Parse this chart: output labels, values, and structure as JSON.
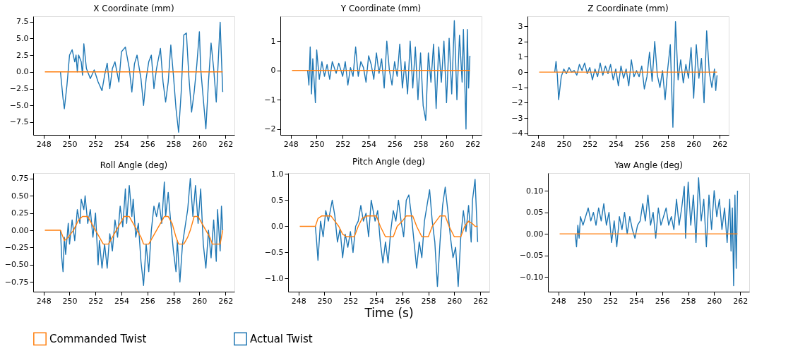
{
  "chart_data": [
    {
      "type": "line",
      "title": "X Coordinate (mm)",
      "xlim": [
        247.2,
        262.7
      ],
      "xticks": [
        248,
        250,
        252,
        254,
        256,
        258,
        260,
        262
      ],
      "ylim": [
        -9.4,
        8.3
      ],
      "yticks": [
        {
          "value": -7.5,
          "label": "−7.5"
        },
        {
          "value": -5,
          "label": "−5.0"
        },
        {
          "value": -2.5,
          "label": "−2.5"
        },
        {
          "value": 0,
          "label": "0.0"
        },
        {
          "value": 2.5,
          "label": "2.5"
        },
        {
          "value": 5,
          "label": "5.0"
        },
        {
          "value": 7.5,
          "label": "7.5"
        }
      ],
      "grid": false,
      "legend": "bottom",
      "series": [
        {
          "name": "Commanded Twist",
          "color": "#ff7f0e",
          "x": [
            248.1,
            261.8
          ],
          "values": [
            0,
            0
          ]
        },
        {
          "name": "Actual Twist",
          "color": "#1f77b4",
          "x": [
            249.3,
            249.5,
            249.6,
            249.8,
            250.0,
            250.2,
            250.4,
            250.5,
            250.6,
            250.7,
            250.9,
            251.0,
            251.1,
            251.3,
            251.6,
            251.9,
            252.2,
            252.5,
            252.7,
            252.9,
            253.1,
            253.3,
            253.5,
            253.8,
            254.0,
            254.3,
            254.6,
            254.8,
            255.0,
            255.2,
            255.5,
            255.7,
            255.9,
            256.1,
            256.3,
            256.5,
            256.7,
            257.0,
            257.2,
            257.4,
            257.6,
            257.8,
            258.0,
            258.2,
            258.4,
            258.6,
            258.8,
            259.0,
            259.2,
            259.4,
            259.6,
            259.8,
            260.0,
            260.1,
            260.3,
            260.5,
            260.7,
            260.9,
            261.1,
            261.3,
            261.5,
            261.6,
            261.7,
            261.8
          ],
          "values": [
            0,
            -4,
            -5.5,
            -2,
            2.5,
            3.3,
            1.5,
            2.5,
            0,
            2.5,
            1.5,
            -0.5,
            4.2,
            0.5,
            -1,
            0.3,
            -1.5,
            -2.8,
            -0.5,
            1.3,
            -2.5,
            0.5,
            1.5,
            -1.5,
            3,
            3.7,
            0.5,
            -3,
            1.2,
            2.5,
            -1,
            -5,
            -1,
            1.5,
            2.5,
            -2.5,
            0.5,
            3.5,
            -1.5,
            -4.5,
            -1.5,
            4,
            -0.5,
            -5.5,
            -9,
            -3,
            5.5,
            5.8,
            -1,
            -6,
            -3,
            1,
            6,
            0.5,
            -4,
            -8.5,
            -1.5,
            4.3,
            0.5,
            -4.5,
            3.5,
            7.4,
            2,
            -3
          ]
        }
      ]
    },
    {
      "type": "line",
      "title": "Y Coordinate (mm)",
      "xlim": [
        247.2,
        262.7
      ],
      "xticks": [
        248,
        250,
        252,
        254,
        256,
        258,
        260,
        262
      ],
      "ylim": [
        -2.2,
        1.85
      ],
      "yticks": [
        {
          "value": -2,
          "label": "−2"
        },
        {
          "value": -1,
          "label": "−1"
        },
        0,
        1
      ],
      "grid": false,
      "series": [
        {
          "color": "#ff7f0e",
          "x": [
            248.1,
            261.8
          ],
          "values": [
            0,
            0
          ]
        },
        {
          "color": "#1f77b4",
          "x": [
            249.3,
            249.4,
            249.5,
            249.6,
            249.7,
            249.9,
            250.0,
            250.2,
            250.4,
            250.6,
            250.8,
            251.0,
            251.2,
            251.5,
            251.7,
            252.0,
            252.2,
            252.4,
            252.6,
            252.8,
            253.0,
            253.2,
            253.4,
            253.6,
            253.8,
            254.0,
            254.2,
            254.4,
            254.6,
            254.8,
            255.0,
            255.2,
            255.4,
            255.6,
            255.8,
            256.0,
            256.2,
            256.4,
            256.6,
            256.8,
            257.0,
            257.2,
            257.4,
            257.6,
            257.8,
            258.0,
            258.2,
            258.4,
            258.6,
            258.8,
            259.0,
            259.2,
            259.4,
            259.6,
            259.8,
            260.0,
            260.2,
            260.4,
            260.6,
            260.8,
            261.0,
            261.2,
            261.3,
            261.5,
            261.6,
            261.7,
            261.8
          ],
          "values": [
            0,
            -0.5,
            0.8,
            -0.8,
            0.4,
            -1.1,
            0.7,
            -0.3,
            0.3,
            -0.2,
            0.2,
            -0.3,
            0.3,
            -0.1,
            0.25,
            -0.2,
            0.3,
            -0.5,
            0.1,
            -0.2,
            0.8,
            -0.2,
            0.3,
            0.1,
            -0.4,
            0.5,
            0.2,
            -0.3,
            0.6,
            -0.1,
            0.4,
            -0.6,
            1.0,
            0,
            -0.5,
            0.3,
            -0.2,
            0.9,
            -0.6,
            0.3,
            -0.8,
            1.0,
            -0.6,
            0.8,
            -1.0,
            0.6,
            -1.2,
            -1.7,
            0.6,
            -0.4,
            0.9,
            -1.3,
            0.8,
            -0.4,
            1.0,
            -1.1,
            1.1,
            -0.8,
            1.7,
            -1.0,
            1.2,
            -0.4,
            1.4,
            -2.0,
            1.4,
            -0.6,
            0.5
          ]
        }
      ]
    },
    {
      "type": "line",
      "title": "Z Coordinate (mm)",
      "xlim": [
        247.2,
        262.7
      ],
      "xticks": [
        248,
        250,
        252,
        254,
        256,
        258,
        260,
        262
      ],
      "ylim": [
        -4.1,
        3.65
      ],
      "yticks": [
        {
          "value": -4,
          "label": "−4"
        },
        {
          "value": -3,
          "label": "−3"
        },
        {
          "value": -2,
          "label": "−2"
        },
        {
          "value": -1,
          "label": "−1"
        },
        0,
        1,
        2,
        3
      ],
      "grid": false,
      "series": [
        {
          "color": "#ff7f0e",
          "x": [
            248.1,
            261.8
          ],
          "values": [
            0,
            0
          ]
        },
        {
          "color": "#1f77b4",
          "x": [
            249.3,
            249.4,
            249.5,
            249.6,
            249.8,
            250.0,
            250.2,
            250.4,
            250.6,
            250.8,
            251.0,
            251.2,
            251.4,
            251.6,
            251.8,
            252.0,
            252.2,
            252.4,
            252.6,
            252.8,
            253.0,
            253.2,
            253.4,
            253.6,
            253.8,
            254.0,
            254.2,
            254.4,
            254.6,
            254.8,
            255.0,
            255.2,
            255.4,
            255.6,
            255.8,
            256.0,
            256.2,
            256.4,
            256.6,
            256.8,
            257.0,
            257.2,
            257.4,
            257.6,
            257.8,
            258.0,
            258.2,
            258.4,
            258.6,
            258.8,
            259.0,
            259.2,
            259.4,
            259.6,
            259.8,
            260.0,
            260.2,
            260.4,
            260.6,
            260.8,
            261.0,
            261.2,
            261.4,
            261.6,
            261.7,
            261.8
          ],
          "values": [
            0,
            0.7,
            -0.2,
            -1.8,
            -0.3,
            0.2,
            -0.1,
            0.3,
            0,
            0.1,
            -0.2,
            0.5,
            0.1,
            0.6,
            -0.1,
            0.3,
            -0.5,
            0.2,
            -0.3,
            0.6,
            -0.2,
            0.4,
            -0.1,
            0.5,
            -0.5,
            0.2,
            -0.9,
            0.4,
            -0.4,
            0.2,
            -0.9,
            0.8,
            -0.3,
            0.1,
            -0.3,
            0.4,
            -1.1,
            -0.3,
            1.3,
            -0.6,
            2.0,
            -0.2,
            -1.0,
            0.1,
            -1.8,
            0.2,
            1.8,
            -3.6,
            3.3,
            -0.5,
            0.8,
            -0.7,
            0.5,
            -0.4,
            1.6,
            -1.7,
            1.8,
            -0.4,
            0.9,
            -2.0,
            2.7,
            0,
            -1.0,
            0.2,
            -1.2,
            -0.2
          ]
        }
      ]
    },
    {
      "type": "line",
      "title": "Roll Angle (deg)",
      "xlim": [
        247.2,
        262.7
      ],
      "xticks": [
        248,
        250,
        252,
        254,
        256,
        258,
        260,
        262
      ],
      "ylim": [
        -0.89,
        0.83
      ],
      "yticks": [
        {
          "value": -0.75,
          "label": "−0.75"
        },
        {
          "value": -0.5,
          "label": "−0.50"
        },
        {
          "value": -0.25,
          "label": "−0.25"
        },
        {
          "value": 0,
          "label": "0.00"
        },
        {
          "value": 0.25,
          "label": "0.25"
        },
        {
          "value": 0.5,
          "label": "0.50"
        },
        {
          "value": 0.75,
          "label": "0.75"
        }
      ],
      "grid": false,
      "series": [
        {
          "color": "#ff7f0e",
          "x": [
            248.1,
            249.3,
            249.6,
            249.9,
            250.3,
            250.7,
            251.0,
            251.4,
            251.7,
            252.0,
            252.3,
            252.6,
            253.0,
            253.3,
            253.6,
            253.9,
            254.2,
            254.6,
            254.9,
            255.2,
            255.5,
            255.7,
            256.1,
            256.4,
            256.7,
            257.0,
            257.3,
            257.6,
            257.9,
            258.2,
            258.4,
            258.8,
            259.1,
            259.3,
            259.6,
            259.9,
            260.2,
            260.5,
            260.8,
            261.0,
            261.6,
            261.8
          ],
          "values": [
            0,
            0,
            -0.15,
            -0.1,
            0,
            0.15,
            0.2,
            0.2,
            0.1,
            0,
            -0.1,
            -0.2,
            -0.2,
            -0.1,
            0,
            0.1,
            0.2,
            0.2,
            0.1,
            0,
            -0.1,
            -0.2,
            -0.2,
            -0.1,
            0,
            0.1,
            0.2,
            0.2,
            0.1,
            -0.1,
            -0.2,
            -0.2,
            -0.1,
            0,
            0.2,
            0.2,
            0.1,
            0,
            -0.1,
            -0.2,
            -0.2,
            0
          ]
        },
        {
          "color": "#1f77b4",
          "x": [
            249.3,
            249.4,
            249.5,
            249.6,
            249.7,
            249.9,
            250.0,
            250.2,
            250.4,
            250.6,
            250.8,
            250.9,
            251.1,
            251.2,
            251.4,
            251.6,
            251.8,
            252.0,
            252.2,
            252.3,
            252.5,
            252.7,
            252.9,
            253.1,
            253.3,
            253.5,
            253.7,
            253.9,
            254.1,
            254.3,
            254.4,
            254.6,
            254.8,
            254.9,
            255.1,
            255.3,
            255.5,
            255.7,
            255.9,
            256.1,
            256.3,
            256.5,
            256.7,
            256.9,
            257.1,
            257.3,
            257.4,
            257.6,
            257.8,
            258.0,
            258.2,
            258.3,
            258.5,
            258.7,
            258.9,
            259.1,
            259.3,
            259.5,
            259.7,
            259.9,
            260.1,
            260.3,
            260.5,
            260.7,
            260.9,
            261.1,
            261.3,
            261.4,
            261.6,
            261.7,
            261.8
          ],
          "values": [
            0,
            -0.4,
            -0.6,
            -0.1,
            -0.35,
            0.1,
            -0.2,
            0.15,
            -0.15,
            0.3,
            0.1,
            0.45,
            0.3,
            0.5,
            0.1,
            0.3,
            -0.1,
            0.25,
            -0.5,
            -0.15,
            -0.55,
            -0.2,
            -0.55,
            -0.05,
            -0.3,
            0.15,
            -0.1,
            0.35,
            0.05,
            0.6,
            0.1,
            0.65,
            0.2,
            0.45,
            -0.1,
            0.1,
            -0.45,
            -0.8,
            -0.2,
            -0.6,
            0,
            0.35,
            0.2,
            0.4,
            0.1,
            0.7,
            0.2,
            0.55,
            0.1,
            -0.3,
            -0.6,
            -0.15,
            -0.75,
            -0.2,
            0.05,
            0.3,
            0.75,
            0.2,
            0.65,
            0.1,
            0.6,
            -0.2,
            -0.55,
            0,
            -0.4,
            0.15,
            -0.45,
            0.3,
            -0.3,
            0.35,
            0
          ]
        }
      ]
    },
    {
      "type": "line",
      "title": "Pitch Angle (deg)",
      "xlabel": "Time (s)",
      "xlim": [
        247.2,
        262.7
      ],
      "xticks": [
        248,
        250,
        252,
        254,
        256,
        258,
        260,
        262
      ],
      "ylim": [
        -1.25,
        1.02
      ],
      "yticks": [
        {
          "value": -1,
          "label": "−1.0"
        },
        {
          "value": -0.5,
          "label": "−0.5"
        },
        {
          "value": 0,
          "label": "0.0"
        },
        {
          "value": 0.5,
          "label": "0.5"
        },
        {
          "value": 1,
          "label": "1.0"
        }
      ],
      "grid": false,
      "series": [
        {
          "color": "#ff7f0e",
          "x": [
            248.1,
            249.3,
            249.5,
            249.8,
            250.5,
            250.8,
            251.1,
            251.4,
            251.7,
            252.3,
            252.6,
            252.9,
            253.3,
            254.0,
            254.3,
            254.7,
            255.3,
            255.6,
            256.0,
            256.3,
            256.8,
            257.1,
            257.5,
            258.0,
            258.3,
            258.6,
            258.9,
            259.3,
            259.6,
            260.0,
            260.5,
            260.8,
            261.1,
            261.4,
            261.6,
            261.8
          ],
          "values": [
            0,
            0,
            0.15,
            0.2,
            0.2,
            0.1,
            0,
            -0.15,
            -0.2,
            -0.2,
            0,
            0.15,
            0.2,
            0.2,
            0,
            -0.2,
            -0.2,
            0,
            0.1,
            0.2,
            0.2,
            0,
            -0.2,
            -0.2,
            0,
            0.1,
            0.2,
            0.2,
            0,
            -0.2,
            -0.2,
            0,
            0.1,
            0.05,
            0,
            0
          ]
        },
        {
          "color": "#1f77b4",
          "x": [
            249.3,
            249.4,
            249.5,
            249.7,
            249.9,
            250.1,
            250.3,
            250.6,
            250.8,
            251.0,
            251.2,
            251.4,
            251.6,
            251.8,
            252.0,
            252.2,
            252.4,
            252.6,
            252.8,
            253.0,
            253.2,
            253.4,
            253.6,
            253.9,
            254.1,
            254.3,
            254.5,
            254.7,
            254.9,
            255.1,
            255.3,
            255.5,
            255.7,
            255.9,
            256.1,
            256.3,
            256.5,
            256.7,
            256.9,
            257.1,
            257.3,
            257.5,
            257.7,
            257.9,
            258.1,
            258.3,
            258.5,
            258.7,
            258.9,
            259.1,
            259.3,
            259.5,
            259.7,
            259.9,
            260.1,
            260.3,
            260.5,
            260.7,
            260.9,
            261.1,
            261.3,
            261.4,
            261.6,
            261.7,
            261.8
          ],
          "values": [
            0,
            -0.3,
            -0.65,
            0.1,
            -0.2,
            0.3,
            0.1,
            0.5,
            0.2,
            -0.3,
            -0.05,
            -0.6,
            -0.15,
            -0.4,
            -0.1,
            -0.5,
            0,
            0.1,
            0.4,
            0.1,
            0.25,
            -0.2,
            0.5,
            0.1,
            0.3,
            -0.3,
            -0.7,
            -0.3,
            -0.7,
            -0.1,
            0.3,
            0.1,
            0.5,
            0.1,
            -0.2,
            0.5,
            0.6,
            0.2,
            -0.3,
            -0.8,
            -0.3,
            -0.6,
            0.1,
            0.4,
            0.7,
            0.1,
            -0.3,
            -1.15,
            -0.3,
            0.4,
            0.75,
            0.3,
            -0.2,
            -0.6,
            -0.4,
            -1.15,
            -0.2,
            0.3,
            -0.1,
            0.4,
            -0.3,
            0.5,
            0.9,
            0.3,
            -0.3
          ]
        }
      ]
    },
    {
      "type": "line",
      "title": "Yaw Angle (deg)",
      "xlim": [
        247.2,
        262.7
      ],
      "xticks": [
        248,
        250,
        252,
        254,
        256,
        258,
        260,
        262
      ],
      "ylim": [
        -0.134,
        0.141
      ],
      "yticks": [
        {
          "value": -0.1,
          "label": "−0.10"
        },
        {
          "value": -0.05,
          "label": "−0.05"
        },
        {
          "value": 0,
          "label": "0.00"
        },
        {
          "value": 0.05,
          "label": "0.05"
        },
        {
          "value": 0.1,
          "label": "0.10"
        }
      ],
      "grid": false,
      "series": [
        {
          "color": "#ff7f0e",
          "x": [
            248.1,
            261.8
          ],
          "values": [
            0,
            0
          ]
        },
        {
          "color": "#1f77b4",
          "x": [
            249.3,
            249.4,
            249.5,
            249.6,
            249.7,
            249.9,
            250.1,
            250.3,
            250.5,
            250.7,
            250.9,
            251.1,
            251.3,
            251.5,
            251.7,
            251.9,
            252.1,
            252.3,
            252.5,
            252.7,
            252.9,
            253.1,
            253.3,
            253.5,
            253.7,
            253.9,
            254.1,
            254.3,
            254.5,
            254.7,
            254.9,
            255.1,
            255.3,
            255.5,
            255.7,
            255.9,
            256.1,
            256.3,
            256.5,
            256.7,
            256.9,
            257.1,
            257.3,
            257.5,
            257.7,
            257.8,
            258.0,
            258.2,
            258.4,
            258.6,
            258.8,
            259.0,
            259.2,
            259.4,
            259.6,
            259.8,
            260.0,
            260.2,
            260.4,
            260.6,
            260.8,
            261.0,
            261.2,
            261.3,
            261.4,
            261.5,
            261.6,
            261.7,
            261.8
          ],
          "values": [
            0,
            -0.03,
            0.02,
            -0.01,
            0.04,
            0.02,
            0.04,
            0.06,
            0.03,
            0.05,
            0.02,
            0.06,
            0.03,
            0.07,
            0.02,
            0.05,
            -0.02,
            0.03,
            -0.03,
            0.04,
            0.01,
            0.05,
            0,
            0.04,
            0.01,
            -0.01,
            0.02,
            0.03,
            0.07,
            0.03,
            0.09,
            0.02,
            0.05,
            -0.01,
            0.06,
            0.02,
            0.04,
            0.06,
            0.02,
            0.04,
            0.01,
            0.08,
            0.02,
            0.06,
            0.11,
            -0.01,
            0.12,
            0.02,
            0.09,
            -0.02,
            0.13,
            0.03,
            0.08,
            -0.03,
            0.09,
            0.01,
            0.1,
            0.04,
            0.08,
            0.01,
            0.06,
            -0.02,
            0.08,
            -0.04,
            0.06,
            -0.12,
            0.09,
            -0.08,
            0.1
          ]
        }
      ]
    }
  ]
}
